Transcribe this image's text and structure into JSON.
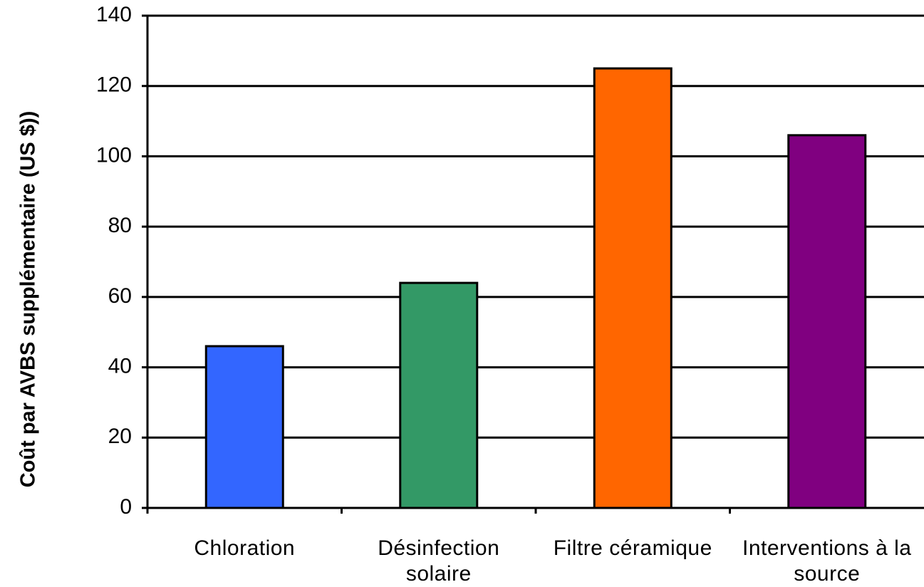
{
  "chart_data": {
    "type": "bar",
    "y_label": "Coût par AVBS supplémentaire (US $))",
    "categories": [
      "Chloration",
      "Désinfection solaire",
      "Filtre céramique",
      "Interventions à la source"
    ],
    "values": [
      46,
      64,
      125,
      106
    ],
    "colors": [
      "#3366ff",
      "#339966",
      "#ff6600",
      "#800080"
    ],
    "ylim": [
      0,
      140
    ],
    "yticks": [
      0,
      20,
      40,
      60,
      80,
      100,
      120,
      140
    ],
    "grid": true
  }
}
